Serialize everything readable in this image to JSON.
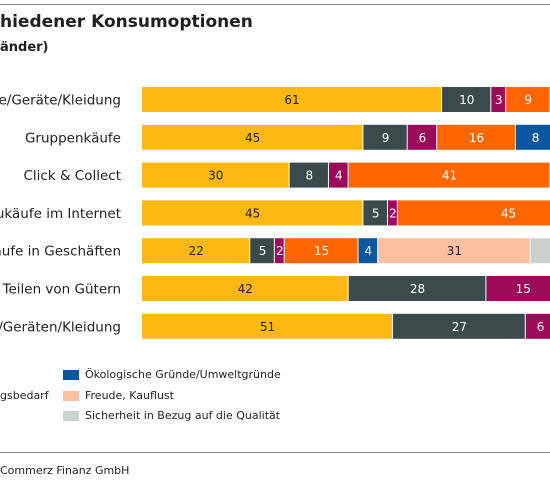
{
  "title": "hiedener Konsumoptionen",
  "subtitle": "änder)",
  "source": "Commerz Finanz GmbH",
  "colors": {
    "gold": "#FDB813",
    "darkslate": "#3B4A4A",
    "magenta": "#9B0B5A",
    "orange": "#FF6600",
    "blue": "#0A56A0",
    "peach": "#FCBFA0",
    "grey": "#CBD0CE"
  },
  "legend": {
    "left_fragment": "gsbedarf",
    "items": [
      {
        "label": "Ökologische Gründe/Umweltgründe",
        "color": "#0A56A0"
      },
      {
        "label": "Freude, Kauflust",
        "color": "#FCBFA0"
      },
      {
        "label": "Sicherheit in Bezug auf die Qualität",
        "color": "#CBD0CE"
      }
    ]
  },
  "chart_data": {
    "type": "bar",
    "orientation": "horizontal",
    "stacked": true,
    "categories": [
      "e/Geräte/Kleidung",
      "Gruppenkäufe",
      "Click & Collect",
      "ukäufe im Internet",
      "äufe in Geschäften",
      "Teilen von Gütern",
      "/Geräten/Kleidung"
    ],
    "rows": [
      [
        {
          "v": 61,
          "c": "#FDB813"
        },
        {
          "v": 10,
          "c": "#3B4A4A"
        },
        {
          "v": 3,
          "c": "#9B0B5A"
        },
        {
          "v": 9,
          "c": "#FF6600"
        }
      ],
      [
        {
          "v": 45,
          "c": "#FDB813"
        },
        {
          "v": 9,
          "c": "#3B4A4A"
        },
        {
          "v": 6,
          "c": "#9B0B5A"
        },
        {
          "v": 16,
          "c": "#FF6600"
        },
        {
          "v": 8,
          "c": "#0A56A0"
        }
      ],
      [
        {
          "v": 30,
          "c": "#FDB813"
        },
        {
          "v": 8,
          "c": "#3B4A4A"
        },
        {
          "v": 4,
          "c": "#9B0B5A"
        },
        {
          "v": 41,
          "c": "#FF6600"
        }
      ],
      [
        {
          "v": 45,
          "c": "#FDB813"
        },
        {
          "v": 5,
          "c": "#3B4A4A"
        },
        {
          "v": 2,
          "c": "#9B0B5A"
        },
        {
          "v": 45,
          "c": "#FF6600"
        }
      ],
      [
        {
          "v": 22,
          "c": "#FDB813"
        },
        {
          "v": 5,
          "c": "#3B4A4A"
        },
        {
          "v": 2,
          "c": "#9B0B5A"
        },
        {
          "v": 15,
          "c": "#FF6600"
        },
        {
          "v": 4,
          "c": "#0A56A0"
        },
        {
          "v": 31,
          "c": "#FCBFA0"
        },
        {
          "v": 6,
          "c": "#CBD0CE"
        }
      ],
      [
        {
          "v": 42,
          "c": "#FDB813"
        },
        {
          "v": 28,
          "c": "#3B4A4A"
        },
        {
          "v": 15,
          "c": "#9B0B5A"
        }
      ],
      [
        {
          "v": 51,
          "c": "#FDB813"
        },
        {
          "v": 27,
          "c": "#3B4A4A"
        },
        {
          "v": 6,
          "c": "#9B0B5A"
        }
      ]
    ],
    "value_labels": true,
    "grid": false
  }
}
